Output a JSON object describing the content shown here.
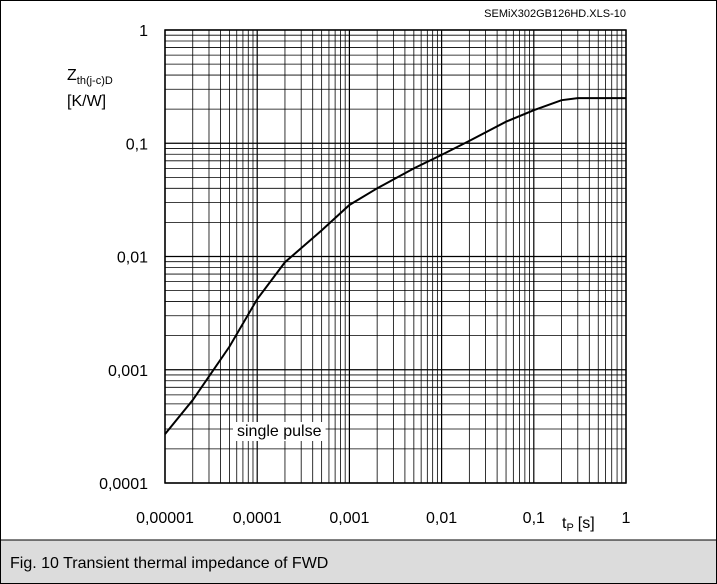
{
  "chart_data": {
    "type": "line",
    "log_x": true,
    "log_y": true,
    "grid": true,
    "watermark": "SEMiX302GB126HD.XLS-10",
    "y_label_main": "Z",
    "y_label_sub": "th(j-c)D",
    "y_label_unit": "[K/W]",
    "x_label_main": "t",
    "x_label_sub": "P",
    "x_label_unit": "[s]",
    "annotation": "single pulse",
    "caption": "Fig. 10 Transient thermal impedance of FWD",
    "xlim": [
      1e-05,
      1
    ],
    "ylim": [
      0.0001,
      1
    ],
    "xticks": [
      {
        "value": 1e-05,
        "label": "0,00001"
      },
      {
        "value": 0.0001,
        "label": "0,0001"
      },
      {
        "value": 0.001,
        "label": "0,001"
      },
      {
        "value": 0.01,
        "label": "0,01"
      },
      {
        "value": 0.1,
        "label": "0,1"
      },
      1
    ],
    "yticks": [
      {
        "value": 0.0001,
        "label": "0,0001"
      },
      {
        "value": 0.001,
        "label": "0,001"
      },
      {
        "value": 0.01,
        "label": "0,01"
      },
      {
        "value": 0.1,
        "label": "0,1"
      },
      1
    ],
    "series": [
      {
        "color": "#000000",
        "x": [
          1e-05,
          2e-05,
          5e-05,
          0.0001,
          0.0002,
          0.0005,
          0.001,
          0.002,
          0.005,
          0.01,
          0.02,
          0.05,
          0.1,
          0.2,
          0.3,
          0.5,
          1
        ],
        "values": [
          0.00027,
          0.00054,
          0.0016,
          0.0042,
          0.0089,
          0.017,
          0.0285,
          0.04,
          0.06,
          0.079,
          0.105,
          0.155,
          0.196,
          0.24,
          0.25,
          0.25,
          0.25
        ]
      }
    ]
  }
}
